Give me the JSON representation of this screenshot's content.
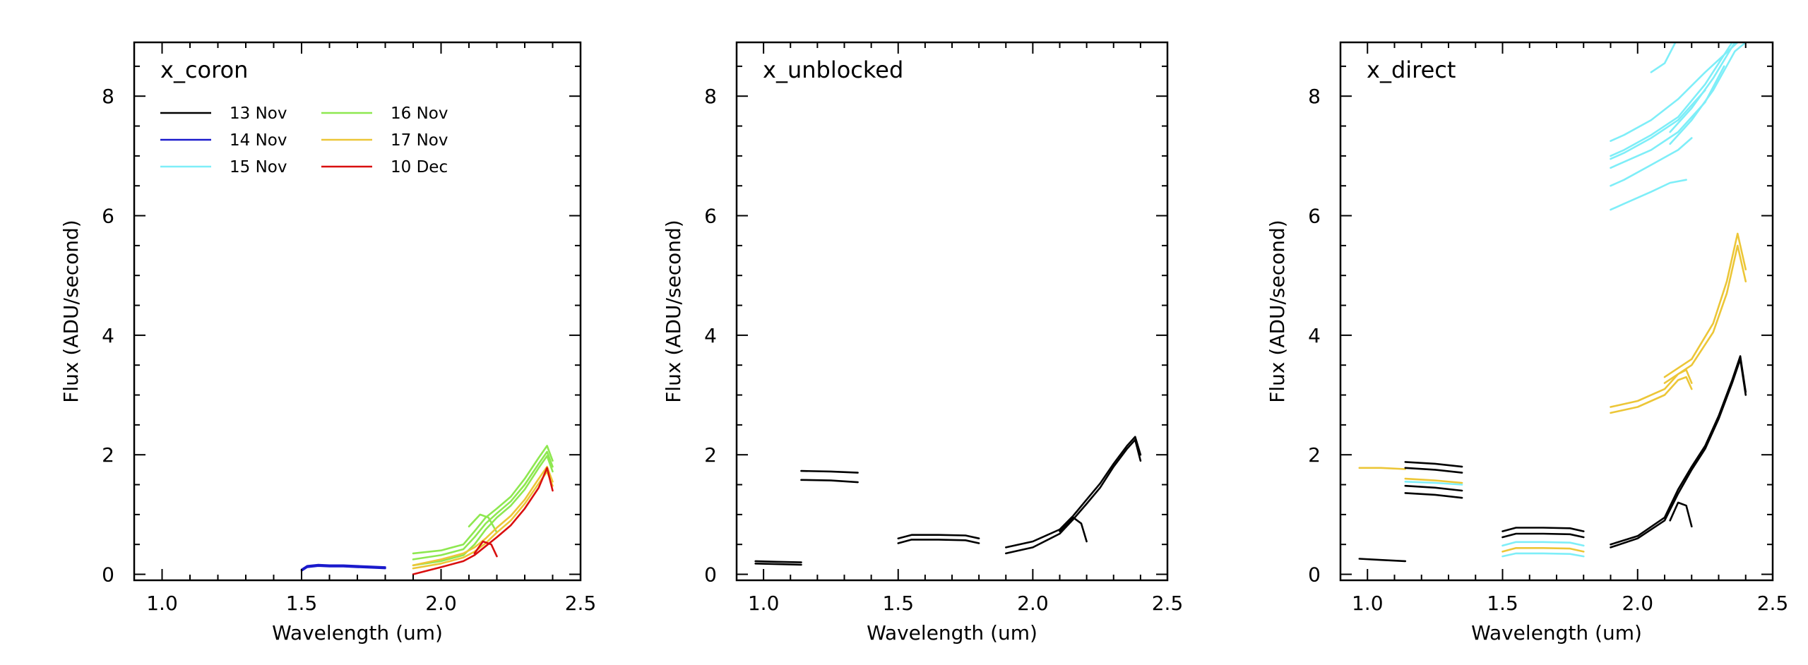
{
  "chart_data": [
    {
      "type": "line",
      "title": "x_coron",
      "xlabel": "Wavelength (um)",
      "ylabel": "Flux (ADU/second)",
      "xlim": [
        0.9,
        2.5
      ],
      "ylim": [
        -0.1,
        8.9
      ],
      "xticks": [
        "1.0",
        "1.5",
        "2.0",
        "2.5"
      ],
      "yticks": [
        "0",
        "2",
        "4",
        "6",
        "8"
      ],
      "legend": {
        "position": "top-left",
        "entries": [
          {
            "label": "13 Nov",
            "color": "#000000"
          },
          {
            "label": "14 Nov",
            "color": "#1a1acc"
          },
          {
            "label": "15 Nov",
            "color": "#7eeef8"
          },
          {
            "label": "16 Nov",
            "color": "#8ee850"
          },
          {
            "label": "17 Nov",
            "color": "#ecc637"
          },
          {
            "label": "10 Dec",
            "color": "#d90f0f"
          }
        ]
      },
      "series": [
        {
          "color": "#1a1acc",
          "x": [
            1.5,
            1.52,
            1.56,
            1.6,
            1.65,
            1.7,
            1.75,
            1.8
          ],
          "y": [
            0.08,
            0.14,
            0.16,
            0.15,
            0.15,
            0.14,
            0.13,
            0.12
          ]
        },
        {
          "color": "#1a1acc",
          "x": [
            1.5,
            1.52,
            1.56,
            1.6,
            1.65,
            1.7,
            1.75,
            1.8
          ],
          "y": [
            0.06,
            0.12,
            0.14,
            0.13,
            0.13,
            0.12,
            0.11,
            0.1
          ]
        },
        {
          "color": "#8ee850",
          "x": [
            1.9,
            2.0,
            2.08,
            2.12,
            2.16,
            2.2,
            2.25,
            2.3,
            2.35,
            2.38,
            2.4
          ],
          "y": [
            0.35,
            0.4,
            0.5,
            0.72,
            0.95,
            1.1,
            1.3,
            1.6,
            1.95,
            2.15,
            1.9
          ]
        },
        {
          "color": "#8ee850",
          "x": [
            1.9,
            2.0,
            2.08,
            2.12,
            2.16,
            2.2,
            2.25,
            2.3,
            2.35,
            2.38,
            2.4
          ],
          "y": [
            0.25,
            0.32,
            0.42,
            0.62,
            0.85,
            1.02,
            1.22,
            1.5,
            1.85,
            2.05,
            1.8
          ]
        },
        {
          "color": "#8ee850",
          "x": [
            1.9,
            2.0,
            2.08,
            2.12,
            2.16,
            2.2,
            2.25,
            2.3,
            2.35,
            2.38,
            2.4
          ],
          "y": [
            0.15,
            0.22,
            0.32,
            0.5,
            0.75,
            0.95,
            1.15,
            1.42,
            1.78,
            1.98,
            1.72
          ]
        },
        {
          "color": "#8ee850",
          "x": [
            2.1,
            2.14,
            2.17,
            2.2
          ],
          "y": [
            0.8,
            1.0,
            0.95,
            0.7
          ]
        },
        {
          "color": "#ecc637",
          "x": [
            1.9,
            2.0,
            2.08,
            2.12,
            2.16,
            2.2,
            2.25,
            2.3,
            2.35,
            2.38,
            2.4
          ],
          "y": [
            0.15,
            0.25,
            0.35,
            0.45,
            0.6,
            0.78,
            0.98,
            1.25,
            1.6,
            1.8,
            1.55
          ]
        },
        {
          "color": "#ecc637",
          "x": [
            1.9,
            2.0,
            2.08,
            2.12,
            2.16,
            2.2,
            2.25,
            2.3,
            2.35,
            2.38,
            2.4
          ],
          "y": [
            0.1,
            0.18,
            0.28,
            0.38,
            0.52,
            0.7,
            0.9,
            1.18,
            1.52,
            1.72,
            1.48
          ]
        },
        {
          "color": "#d90f0f",
          "x": [
            1.9,
            2.0,
            2.08,
            2.12,
            2.16,
            2.2,
            2.25,
            2.3,
            2.35,
            2.38,
            2.4
          ],
          "y": [
            0.0,
            0.12,
            0.22,
            0.32,
            0.47,
            0.62,
            0.82,
            1.1,
            1.45,
            1.78,
            1.4
          ]
        },
        {
          "color": "#d90f0f",
          "x": [
            2.12,
            2.15,
            2.18,
            2.2
          ],
          "y": [
            0.35,
            0.55,
            0.5,
            0.3
          ]
        }
      ]
    },
    {
      "type": "line",
      "title": "x_unblocked",
      "xlabel": "Wavelength (um)",
      "ylabel": "Flux (ADU/second)",
      "xlim": [
        0.9,
        2.5
      ],
      "ylim": [
        -0.1,
        8.9
      ],
      "xticks": [
        "1.0",
        "1.5",
        "2.0",
        "2.5"
      ],
      "yticks": [
        "0",
        "2",
        "4",
        "6",
        "8"
      ],
      "series": [
        {
          "color": "#000000",
          "x": [
            0.97,
            1.05,
            1.14
          ],
          "y": [
            0.22,
            0.21,
            0.2
          ]
        },
        {
          "color": "#000000",
          "x": [
            0.97,
            1.05,
            1.14
          ],
          "y": [
            0.18,
            0.17,
            0.16
          ]
        },
        {
          "color": "#000000",
          "x": [
            1.14,
            1.25,
            1.35
          ],
          "y": [
            1.73,
            1.72,
            1.7
          ]
        },
        {
          "color": "#000000",
          "x": [
            1.14,
            1.25,
            1.35
          ],
          "y": [
            1.58,
            1.57,
            1.54
          ]
        },
        {
          "color": "#000000",
          "x": [
            1.5,
            1.55,
            1.65,
            1.75,
            1.8
          ],
          "y": [
            0.6,
            0.66,
            0.66,
            0.65,
            0.6
          ]
        },
        {
          "color": "#000000",
          "x": [
            1.5,
            1.55,
            1.65,
            1.75,
            1.8
          ],
          "y": [
            0.52,
            0.58,
            0.58,
            0.57,
            0.52
          ]
        },
        {
          "color": "#000000",
          "x": [
            1.9,
            2.0,
            2.1,
            2.15,
            2.2,
            2.25,
            2.3,
            2.35,
            2.38,
            2.4
          ],
          "y": [
            0.45,
            0.55,
            0.75,
            0.98,
            1.25,
            1.52,
            1.85,
            2.15,
            2.3,
            2.0
          ]
        },
        {
          "color": "#000000",
          "x": [
            1.9,
            2.0,
            2.1,
            2.15,
            2.2,
            2.25,
            2.3,
            2.35,
            2.38,
            2.4
          ],
          "y": [
            0.35,
            0.45,
            0.68,
            0.92,
            1.18,
            1.45,
            1.8,
            2.1,
            2.25,
            1.9
          ]
        },
        {
          "color": "#000000",
          "x": [
            2.1,
            2.15,
            2.18,
            2.2
          ],
          "y": [
            0.72,
            0.95,
            0.85,
            0.55
          ]
        }
      ]
    },
    {
      "type": "line",
      "title": "x_direct",
      "xlabel": "Wavelength (um)",
      "ylabel": "Flux (ADU/second)",
      "xlim": [
        0.9,
        2.5
      ],
      "ylim": [
        -0.1,
        8.9
      ],
      "xticks": [
        "1.0",
        "1.5",
        "2.0",
        "2.5"
      ],
      "yticks": [
        "0",
        "2",
        "4",
        "6",
        "8"
      ],
      "series": [
        {
          "color": "#000000",
          "x": [
            0.97,
            1.05,
            1.14
          ],
          "y": [
            0.26,
            0.24,
            0.22
          ]
        },
        {
          "color": "#ecc637",
          "x": [
            0.97,
            1.05,
            1.14
          ],
          "y": [
            1.78,
            1.78,
            1.76
          ]
        },
        {
          "color": "#000000",
          "x": [
            1.14,
            1.25,
            1.35
          ],
          "y": [
            1.88,
            1.85,
            1.8
          ]
        },
        {
          "color": "#000000",
          "x": [
            1.14,
            1.25,
            1.35
          ],
          "y": [
            1.78,
            1.75,
            1.7
          ]
        },
        {
          "color": "#000000",
          "x": [
            1.14,
            1.25,
            1.35
          ],
          "y": [
            1.48,
            1.45,
            1.4
          ]
        },
        {
          "color": "#000000",
          "x": [
            1.14,
            1.25,
            1.35
          ],
          "y": [
            1.36,
            1.33,
            1.28
          ]
        },
        {
          "color": "#ecc637",
          "x": [
            1.14,
            1.25,
            1.35
          ],
          "y": [
            1.6,
            1.57,
            1.53
          ]
        },
        {
          "color": "#7eeef8",
          "x": [
            1.14,
            1.25,
            1.35
          ],
          "y": [
            1.55,
            1.53,
            1.5
          ]
        },
        {
          "color": "#000000",
          "x": [
            1.5,
            1.55,
            1.65,
            1.75,
            1.8
          ],
          "y": [
            0.72,
            0.78,
            0.78,
            0.77,
            0.72
          ]
        },
        {
          "color": "#000000",
          "x": [
            1.5,
            1.55,
            1.65,
            1.75,
            1.8
          ],
          "y": [
            0.62,
            0.68,
            0.68,
            0.67,
            0.62
          ]
        },
        {
          "color": "#7eeef8",
          "x": [
            1.5,
            1.55,
            1.65,
            1.75,
            1.8
          ],
          "y": [
            0.48,
            0.54,
            0.54,
            0.53,
            0.48
          ]
        },
        {
          "color": "#ecc637",
          "x": [
            1.5,
            1.55,
            1.65,
            1.75,
            1.8
          ],
          "y": [
            0.38,
            0.44,
            0.44,
            0.43,
            0.38
          ]
        },
        {
          "color": "#7eeef8",
          "x": [
            1.5,
            1.55,
            1.65,
            1.75,
            1.8
          ],
          "y": [
            0.3,
            0.35,
            0.35,
            0.34,
            0.3
          ]
        },
        {
          "color": "#000000",
          "x": [
            1.9,
            2.0,
            2.1,
            2.15,
            2.2,
            2.25,
            2.3,
            2.35,
            2.38,
            2.4
          ],
          "y": [
            0.45,
            0.6,
            0.9,
            1.35,
            1.75,
            2.1,
            2.6,
            3.2,
            3.6,
            3.0
          ]
        },
        {
          "color": "#000000",
          "x": [
            1.9,
            2.0,
            2.1,
            2.15,
            2.2,
            2.25,
            2.3,
            2.35,
            2.38,
            2.4
          ],
          "y": [
            0.5,
            0.64,
            0.95,
            1.42,
            1.8,
            2.15,
            2.65,
            3.25,
            3.65,
            3.05
          ]
        },
        {
          "color": "#000000",
          "x": [
            2.12,
            2.15,
            2.18,
            2.2
          ],
          "y": [
            0.9,
            1.2,
            1.15,
            0.8
          ]
        },
        {
          "color": "#ecc637",
          "x": [
            1.9,
            2.0,
            2.1,
            2.15,
            2.18,
            2.2
          ],
          "y": [
            2.7,
            2.8,
            3.0,
            3.25,
            3.3,
            3.1
          ]
        },
        {
          "color": "#ecc637",
          "x": [
            1.9,
            2.0,
            2.1,
            2.15,
            2.18,
            2.2
          ],
          "y": [
            2.8,
            2.9,
            3.1,
            3.35,
            3.42,
            3.2
          ]
        },
        {
          "color": "#ecc637",
          "x": [
            2.1,
            2.2,
            2.28,
            2.33,
            2.37,
            2.4
          ],
          "y": [
            3.3,
            3.6,
            4.2,
            4.9,
            5.7,
            5.1
          ]
        },
        {
          "color": "#ecc637",
          "x": [
            2.1,
            2.2,
            2.28,
            2.33,
            2.37,
            2.4
          ],
          "y": [
            3.2,
            3.5,
            4.05,
            4.7,
            5.5,
            4.9
          ]
        },
        {
          "color": "#7eeef8",
          "x": [
            1.9,
            1.95,
            2.05,
            2.12,
            2.18
          ],
          "y": [
            6.1,
            6.2,
            6.4,
            6.55,
            6.6
          ]
        },
        {
          "color": "#7eeef8",
          "x": [
            1.9,
            1.95,
            2.05,
            2.15,
            2.2
          ],
          "y": [
            6.5,
            6.6,
            6.85,
            7.1,
            7.3
          ]
        },
        {
          "color": "#7eeef8",
          "x": [
            1.9,
            1.95,
            2.05,
            2.15,
            2.25,
            2.32
          ],
          "y": [
            6.8,
            6.9,
            7.1,
            7.4,
            7.9,
            8.5
          ]
        },
        {
          "color": "#7eeef8",
          "x": [
            1.9,
            1.95,
            2.05,
            2.15,
            2.25,
            2.35
          ],
          "y": [
            7.0,
            7.1,
            7.35,
            7.65,
            8.2,
            8.9
          ]
        },
        {
          "color": "#7eeef8",
          "x": [
            1.9,
            1.95,
            2.05,
            2.15,
            2.25,
            2.37
          ],
          "y": [
            7.25,
            7.35,
            7.6,
            7.95,
            8.4,
            8.9
          ]
        },
        {
          "color": "#7eeef8",
          "x": [
            1.9,
            1.95,
            2.05,
            2.15,
            2.25
          ],
          "y": [
            6.95,
            7.05,
            7.3,
            7.6,
            8.1
          ]
        },
        {
          "color": "#7eeef8",
          "x": [
            2.12,
            2.2,
            2.28,
            2.36,
            2.4
          ],
          "y": [
            7.2,
            7.6,
            8.1,
            8.75,
            8.9
          ]
        },
        {
          "color": "#7eeef8",
          "x": [
            2.12,
            2.2,
            2.28,
            2.36
          ],
          "y": [
            7.4,
            7.8,
            8.3,
            8.9
          ]
        },
        {
          "color": "#7eeef8",
          "x": [
            2.05,
            2.1,
            2.14
          ],
          "y": [
            8.4,
            8.55,
            8.9
          ]
        }
      ]
    }
  ]
}
